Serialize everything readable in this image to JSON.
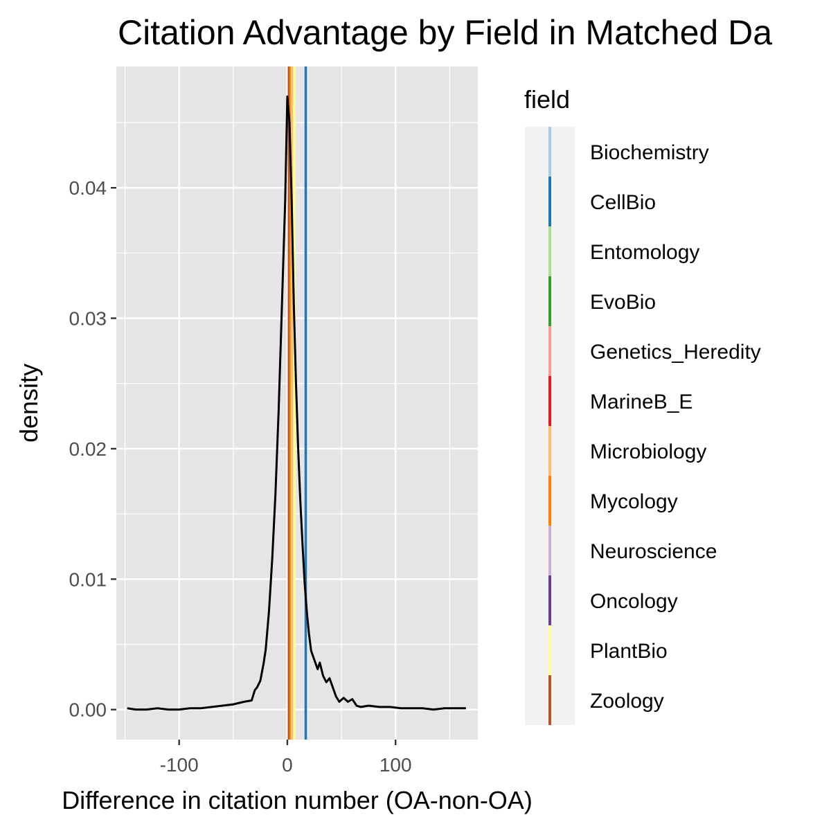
{
  "chart_data": {
    "type": "area",
    "title": "Citation Advantage by Field in Matched Da",
    "xlabel": "Difference in citation number (OA-non-OA)",
    "ylabel": "density",
    "xlim": [
      -158,
      176
    ],
    "ylim": [
      -0.0023,
      0.0493
    ],
    "x_ticks": [
      -100,
      0,
      100
    ],
    "x_tick_labels": [
      "-100",
      "0",
      "100"
    ],
    "y_ticks": [
      0.0,
      0.01,
      0.02,
      0.03,
      0.04
    ],
    "y_tick_labels": [
      "0.00",
      "0.01",
      "0.02",
      "0.03",
      "0.04"
    ],
    "grid": true,
    "density_curve": {
      "color": "#000000",
      "x": [
        -148,
        -140,
        -130,
        -120,
        -110,
        -100,
        -90,
        -80,
        -70,
        -60,
        -50,
        -40,
        -33,
        -30,
        -28,
        -25,
        -22,
        -20,
        -17,
        -14,
        -11,
        -8,
        -5,
        -2,
        0,
        2,
        4,
        6,
        8,
        10,
        12,
        14,
        16,
        18,
        20,
        22,
        25,
        28,
        30,
        33,
        36,
        39,
        42,
        45,
        48,
        52,
        56,
        60,
        64,
        68,
        75,
        85,
        95,
        105,
        115,
        125,
        135,
        145,
        155,
        165
      ],
      "y": [
        0.0001,
        0.0,
        0.0,
        0.0001,
        0.0,
        0.0,
        0.0001,
        0.0001,
        0.0002,
        0.0003,
        0.0004,
        0.0006,
        0.0007,
        0.0015,
        0.0017,
        0.0022,
        0.0035,
        0.0046,
        0.0075,
        0.0115,
        0.0165,
        0.023,
        0.031,
        0.039,
        0.047,
        0.045,
        0.039,
        0.031,
        0.025,
        0.02,
        0.016,
        0.0127,
        0.0097,
        0.0075,
        0.0058,
        0.0045,
        0.0038,
        0.0031,
        0.0036,
        0.0026,
        0.0021,
        0.0024,
        0.0017,
        0.001,
        0.0006,
        0.0009,
        0.0006,
        0.0008,
        0.0003,
        0.0002,
        0.0003,
        0.0002,
        0.0002,
        0.0001,
        0.0001,
        0.0001,
        0.0,
        0.0001,
        0.0001,
        0.0001
      ]
    },
    "legend": {
      "title": "field",
      "placement": "right",
      "entries": [
        {
          "name": "Biochemistry",
          "color": "#A6CEE3"
        },
        {
          "name": "CellBio",
          "color": "#1F78B4"
        },
        {
          "name": "Entomology",
          "color": "#B2DF8A"
        },
        {
          "name": "EvoBio",
          "color": "#33A02C"
        },
        {
          "name": "Genetics_Heredity",
          "color": "#FB9A99"
        },
        {
          "name": "MarineB_E",
          "color": "#E31A1C"
        },
        {
          "name": "Microbiology",
          "color": "#FDBF6F"
        },
        {
          "name": "Mycology",
          "color": "#FF7F00"
        },
        {
          "name": "Neuroscience",
          "color": "#CAB2D6"
        },
        {
          "name": "Oncology",
          "color": "#6A3D9A"
        },
        {
          "name": "PlantBio",
          "color": "#FFFF99"
        },
        {
          "name": "Zoology",
          "color": "#B15928"
        }
      ]
    },
    "vlines": [
      {
        "field": "Zoology",
        "x": 1.5,
        "color": "#B15928"
      },
      {
        "field": "Mycology",
        "x": 3.0,
        "color": "#FF7F00"
      },
      {
        "field": "Microbiology",
        "x": 4.2,
        "color": "#FDBF6F"
      },
      {
        "field": "PlantBio",
        "x": 6.5,
        "color": "#FFFF99"
      },
      {
        "field": "CellBio",
        "x": 17.0,
        "color": "#1F78B4"
      }
    ],
    "colors": {
      "panel_background": "#E5E5E5",
      "grid": "#FFFFFF",
      "legend_key_background": "#F2F2F2"
    }
  }
}
